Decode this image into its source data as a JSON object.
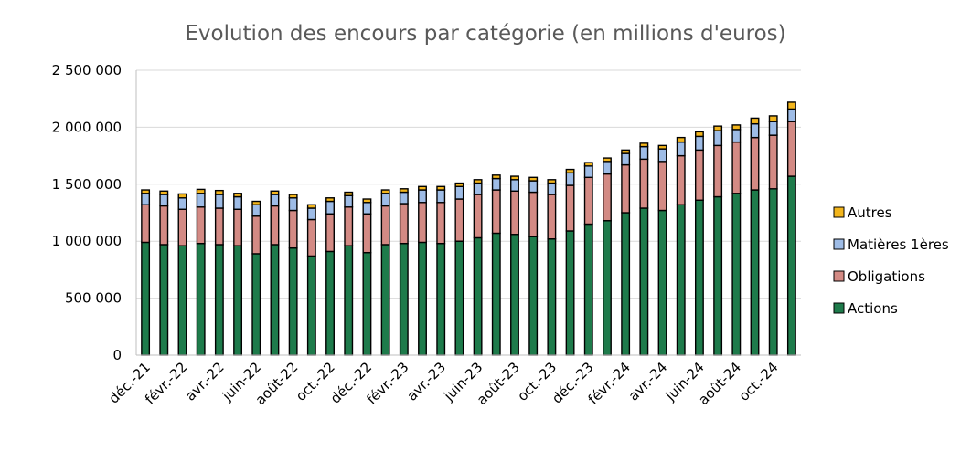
{
  "chart_data": {
    "type": "bar",
    "stacked": true,
    "title": "Evolution des encours par catégorie (en millions d'euros)",
    "xlabel": "",
    "ylabel": "",
    "ylim": [
      0,
      2500000
    ],
    "yticks": [
      0,
      500000,
      1000000,
      1500000,
      2000000,
      2500000
    ],
    "ytick_labels": [
      "0",
      "500 000",
      "1 000 000",
      "1 500 000",
      "2 000 000",
      "2 500 000"
    ],
    "grid": true,
    "legend_position": "right",
    "categories": [
      "déc.-21",
      "janv.-22",
      "févr.-22",
      "mars-22",
      "avr.-22",
      "mai-22",
      "juin-22",
      "juil.-22",
      "août-22",
      "sept.-22",
      "oct.-22",
      "nov.-22",
      "déc.-22",
      "janv.-23",
      "févr.-23",
      "mars-23",
      "avr.-23",
      "mai-23",
      "juin-23",
      "juil.-23",
      "août-23",
      "sept.-23",
      "oct.-23",
      "nov.-23",
      "déc.-23",
      "janv.-24",
      "févr.-24",
      "mars-24",
      "avr.-24",
      "mai-24",
      "juin-24",
      "juil.-24",
      "août-24",
      "sept.-24",
      "oct.-24",
      "nov.-24"
    ],
    "shown_tick_labels": [
      "déc.-21",
      "févr.-22",
      "avr.-22",
      "juin-22",
      "août-22",
      "oct.-22",
      "déc.-22",
      "févr.-23",
      "avr.-23",
      "juin-23",
      "août-23",
      "oct.-23",
      "déc.-23",
      "févr.-24",
      "avr.-24",
      "juin-24",
      "août-24",
      "oct.-24"
    ],
    "series": [
      {
        "name": "Actions",
        "color": "#1E7B4B",
        "values": [
          990000,
          970000,
          960000,
          980000,
          970000,
          960000,
          890000,
          970000,
          940000,
          870000,
          910000,
          960000,
          900000,
          970000,
          980000,
          990000,
          980000,
          1000000,
          1030000,
          1070000,
          1060000,
          1040000,
          1020000,
          1090000,
          1150000,
          1180000,
          1250000,
          1290000,
          1270000,
          1320000,
          1360000,
          1390000,
          1420000,
          1450000,
          1460000,
          1570000
        ]
      },
      {
        "name": "Obligations",
        "color": "#D38A84",
        "values": [
          330000,
          340000,
          320000,
          320000,
          320000,
          320000,
          330000,
          340000,
          330000,
          320000,
          330000,
          340000,
          340000,
          340000,
          350000,
          350000,
          360000,
          370000,
          380000,
          380000,
          380000,
          390000,
          390000,
          400000,
          410000,
          410000,
          420000,
          430000,
          430000,
          430000,
          440000,
          450000,
          450000,
          460000,
          470000,
          480000
        ]
      },
      {
        "name": "Matières 1ères",
        "color": "#9EBCE6",
        "values": [
          100000,
          100000,
          100000,
          120000,
          120000,
          110000,
          100000,
          100000,
          110000,
          100000,
          110000,
          100000,
          100000,
          110000,
          100000,
          110000,
          110000,
          110000,
          100000,
          100000,
          100000,
          100000,
          100000,
          110000,
          100000,
          110000,
          100000,
          110000,
          110000,
          120000,
          120000,
          130000,
          110000,
          120000,
          120000,
          110000
        ]
      },
      {
        "name": "Autres",
        "color": "#F2B51C",
        "values": [
          30000,
          30000,
          35000,
          35000,
          35000,
          30000,
          30000,
          30000,
          30000,
          30000,
          30000,
          30000,
          30000,
          30000,
          30000,
          30000,
          30000,
          30000,
          30000,
          30000,
          30000,
          30000,
          30000,
          30000,
          30000,
          30000,
          30000,
          30000,
          30000,
          40000,
          40000,
          40000,
          40000,
          50000,
          50000,
          60000
        ]
      }
    ]
  }
}
